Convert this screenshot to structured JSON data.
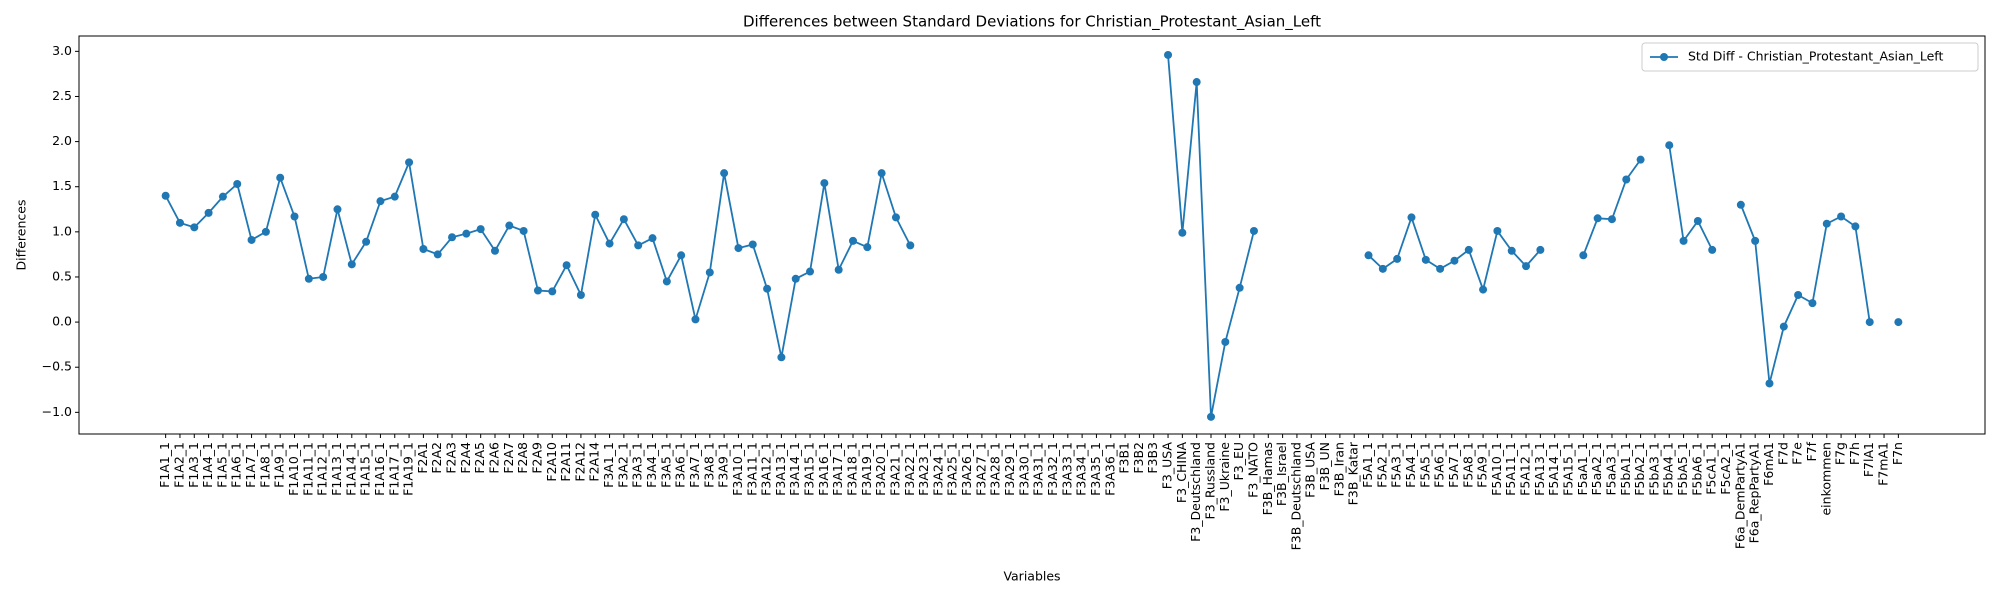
{
  "chart_data": {
    "type": "line",
    "title": "Differences between Standard Deviations for Christian_Protestant_Asian_Left",
    "xlabel": "Variables",
    "ylabel": "Differences",
    "legend": "upper right",
    "categories": [
      "F1A1_1",
      "F1A2_1",
      "F1A3_1",
      "F1A4_1",
      "F1A5_1",
      "F1A6_1",
      "F1A7_1",
      "F1A8_1",
      "F1A9_1",
      "F1A10_1",
      "F1A11_1",
      "F1A12_1",
      "F1A13_1",
      "F1A14_1",
      "F1A15_1",
      "F1A16_1",
      "F1A17_1",
      "F1A19_1",
      "F2A1",
      "F2A2",
      "F2A3",
      "F2A4",
      "F2A5",
      "F2A6",
      "F2A7",
      "F2A8",
      "F2A9",
      "F2A10",
      "F2A11",
      "F2A12",
      "F2A14",
      "F3A1_1",
      "F3A2_1",
      "F3A3_1",
      "F3A4_1",
      "F3A5_1",
      "F3A6_1",
      "F3A7_1",
      "F3A8_1",
      "F3A9_1",
      "F3A10_1",
      "F3A11_1",
      "F3A12_1",
      "F3A13_1",
      "F3A14_1",
      "F3A15_1",
      "F3A16_1",
      "F3A17_1",
      "F3A18_1",
      "F3A19_1",
      "F3A20_1",
      "F3A21_1",
      "F3A22_1",
      "F3A23_1",
      "F3A24_1",
      "F3A25_1",
      "F3A26_1",
      "F3A27_1",
      "F3A28_1",
      "F3A29_1",
      "F3A30_1",
      "F3A31_1",
      "F3A32_1",
      "F3A33_1",
      "F3A34_1",
      "F3A35_1",
      "F3A36_1",
      "F3B1",
      "F3B2",
      "F3B3",
      "F3_USA",
      "F3_CHINA",
      "F3_Deutschland",
      "F3_Russland",
      "F3_Ukraine",
      "F3_EU",
      "F3_NATO",
      "F3B_Hamas",
      "F3B_Israel",
      "F3B_Deutschland",
      "F3B_USA",
      "F3B_UN",
      "F3B_Iran",
      "F3B_Katar",
      "F5A1_1",
      "F5A2_1",
      "F5A3_1",
      "F5A4_1",
      "F5A5_1",
      "F5A6_1",
      "F5A7_1",
      "F5A8_1",
      "F5A9_1",
      "F5A10_1",
      "F5A11_1",
      "F5A12_1",
      "F5A13_1",
      "F5A14_1",
      "F5A15_1",
      "F5aA1_1",
      "F5aA2_1",
      "F5aA3_1",
      "F5bA1_1",
      "F5bA2_1",
      "F5bA3_1",
      "F5bA4_1",
      "F5bA5_1",
      "F5bA6_1",
      "F5cA1_1",
      "F5cA2_1",
      "F6a_DemPartyA1",
      "F6a_RepPartyA1",
      "F6mA1",
      "F7d",
      "F7e",
      "F7f",
      "einkommen",
      "F7g",
      "F7h",
      "F7lA1",
      "F7mA1",
      "F7n"
    ],
    "series": [
      {
        "name": "Std Diff - Christian_Protestant_Asian_Left",
        "color": "#1f77b4",
        "values": [
          1.4,
          1.1,
          1.05,
          1.21,
          1.39,
          1.53,
          0.91,
          1.0,
          1.6,
          1.17,
          0.48,
          0.5,
          1.25,
          0.64,
          0.89,
          1.34,
          1.39,
          1.77,
          0.81,
          0.75,
          0.94,
          0.98,
          1.03,
          0.79,
          1.07,
          1.01,
          0.35,
          0.34,
          0.63,
          0.3,
          1.19,
          0.87,
          1.14,
          0.85,
          0.93,
          0.45,
          0.74,
          0.03,
          0.55,
          1.65,
          0.82,
          0.86,
          0.37,
          -0.39,
          0.48,
          0.56,
          1.54,
          0.58,
          0.9,
          0.83,
          1.65,
          1.16,
          0.85,
          null,
          null,
          null,
          null,
          null,
          null,
          null,
          null,
          null,
          null,
          null,
          null,
          null,
          null,
          null,
          null,
          null,
          2.96,
          0.99,
          2.66,
          -1.05,
          -0.22,
          0.38,
          1.01,
          null,
          null,
          null,
          null,
          null,
          null,
          null,
          0.74,
          0.59,
          0.7,
          1.16,
          0.69,
          0.59,
          0.68,
          0.8,
          0.36,
          1.01,
          0.79,
          0.62,
          0.8,
          null,
          null,
          0.74,
          1.15,
          1.14,
          1.58,
          1.8,
          null,
          1.96,
          0.9,
          1.12,
          0.8,
          null,
          1.3,
          0.9,
          -0.68,
          -0.05,
          0.3,
          0.21,
          1.09,
          1.17,
          1.06,
          0.0,
          null,
          0.0
        ]
      }
    ],
    "ylim": [
      -1.24,
      3.17
    ],
    "yticks": [
      {
        "value": -1.0,
        "label": "−1.0"
      },
      {
        "value": -0.5,
        "label": "−0.5"
      },
      {
        "value": 0.0,
        "label": "0.0"
      },
      {
        "value": 0.5,
        "label": "0.5"
      },
      {
        "value": 1.0,
        "label": "1.0"
      },
      {
        "value": 1.5,
        "label": "1.5"
      },
      {
        "value": 2.0,
        "label": "2.0"
      },
      {
        "value": 2.5,
        "label": "2.5"
      },
      {
        "value": 3.0,
        "label": "3.0"
      }
    ]
  }
}
